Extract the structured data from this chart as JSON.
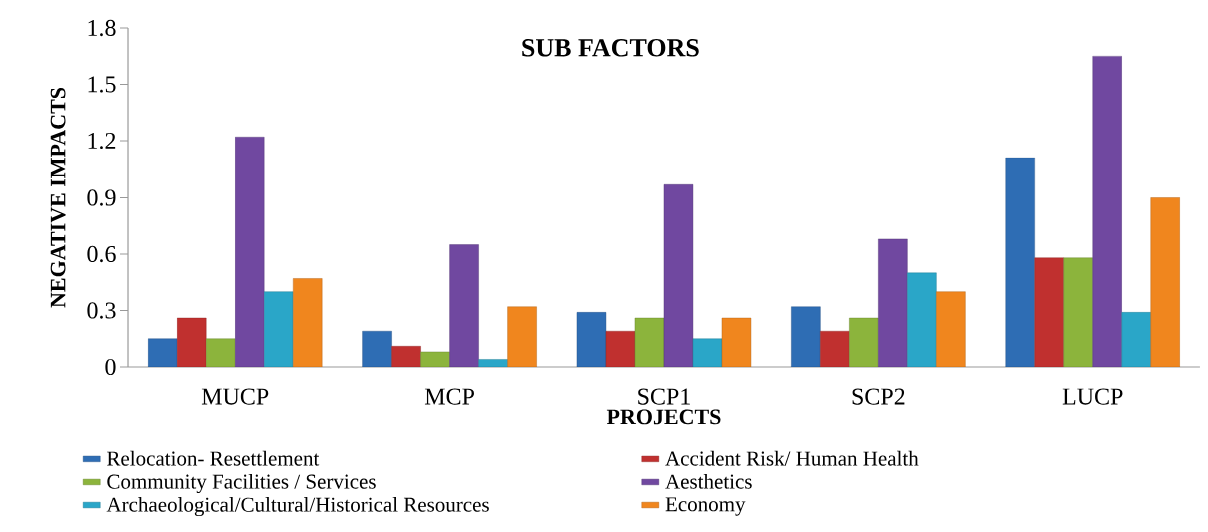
{
  "chart_data": {
    "type": "bar",
    "title": "SUB FACTORS",
    "xlabel": "PROJECTS",
    "ylabel": "NEGATIVE IMPACTS",
    "categories": [
      "MUCP",
      "MCP",
      "SCP1",
      "SCP2",
      "LUCP"
    ],
    "series": [
      {
        "name": "Relocation- Resettlement",
        "color": "#2e6db4",
        "values": [
          0.15,
          0.19,
          0.29,
          0.32,
          1.11
        ]
      },
      {
        "name": "Accident Risk/ Human Health",
        "color": "#c0302f",
        "values": [
          0.26,
          0.11,
          0.19,
          0.19,
          0.58
        ]
      },
      {
        "name": "Community Facilities / Services",
        "color": "#8cb43c",
        "values": [
          0.15,
          0.08,
          0.26,
          0.26,
          0.58
        ]
      },
      {
        "name": "Aesthetics",
        "color": "#7048a0",
        "values": [
          1.22,
          0.65,
          0.97,
          0.68,
          1.65
        ]
      },
      {
        "name": "Archaeological/Cultural/Historical Resources",
        "color": "#2aa6c8",
        "values": [
          0.4,
          0.04,
          0.15,
          0.5,
          0.29
        ]
      },
      {
        "name": "Economy",
        "color": "#f0861e",
        "values": [
          0.47,
          0.32,
          0.26,
          0.4,
          0.9
        ]
      }
    ],
    "ylim": [
      0,
      1.8
    ],
    "yticks": [
      0,
      0.3,
      0.6,
      0.9,
      1.2,
      1.5,
      1.8
    ],
    "grid": false,
    "legend": "bottom"
  }
}
